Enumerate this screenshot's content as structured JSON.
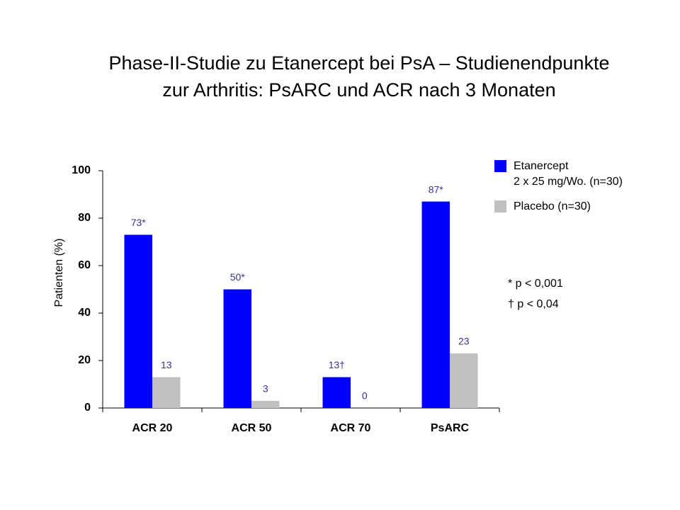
{
  "chart_data": {
    "type": "bar",
    "title": "Phase-II-Studie zu Etanercept bei PsA – Studienendpunkte\nzur Arthritis: PsARC und ACR nach 3 Monaten",
    "y_label": "Patienten (%)",
    "categories": [
      "ACR 20",
      "ACR 50",
      "ACR 70",
      "PsARC"
    ],
    "series": [
      {
        "name": "Etanercept\n2 x 25 mg/Wo. (n=30)",
        "color": "#0000ff",
        "values": [
          73,
          50,
          13,
          87
        ],
        "value_labels": [
          "73*",
          "50*",
          "13†",
          "87*"
        ]
      },
      {
        "name": "Placebo (n=30)",
        "color": "#c0c0c0",
        "values": [
          13,
          3,
          0,
          23
        ]
      }
    ],
    "ylim": [
      0,
      100
    ],
    "yticks": [
      0,
      20,
      40,
      60,
      80,
      100
    ],
    "annotations": [
      "* p < 0,001",
      "† p < 0,04"
    ]
  }
}
